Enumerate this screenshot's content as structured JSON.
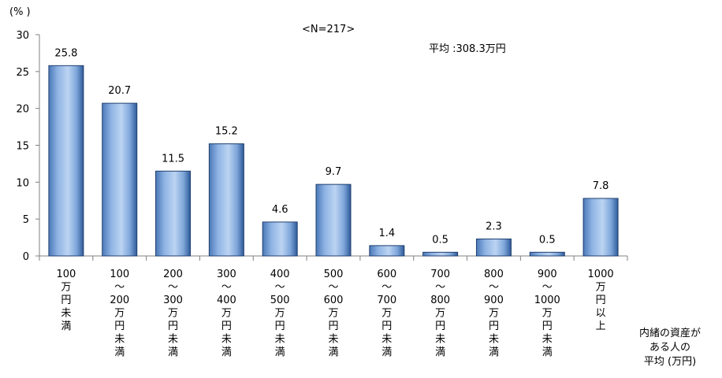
{
  "chart_data": {
    "type": "bar",
    "ylabel": "(% )",
    "subtitle_n": "<N=217>",
    "annotation": "平均 :308.3万円",
    "xlabel": "内緒の資産が\nある人の\n平均 (万円)",
    "ylim": [
      0,
      30
    ],
    "yticks": [
      0,
      5,
      10,
      15,
      20,
      25,
      30
    ],
    "categories": [
      "100\n万\n円\n未\n満",
      "100\n〜\n200\n万\n円\n未\n満",
      "200\n〜\n300\n万\n円\n未\n満",
      "300\n〜\n400\n万\n円\n未\n満",
      "400\n〜\n500\n万\n円\n未\n満",
      "500\n〜\n600\n万\n円\n未\n満",
      "600\n〜\n700\n万\n円\n未\n満",
      "700\n〜\n800\n万\n円\n未\n満",
      "800\n〜\n900\n万\n円\n未\n満",
      "900\n〜\n1000\n万\n円\n未\n満",
      "1000\n万\n円\n以\n上"
    ],
    "values": [
      25.8,
      20.7,
      11.5,
      15.2,
      4.6,
      9.7,
      1.4,
      0.5,
      2.3,
      0.5,
      7.8
    ],
    "value_labels": [
      "25.8",
      "20.7",
      "11.5",
      "15.2",
      "4.6",
      "9.7",
      "1.4",
      "0.5",
      "2.3",
      "0.5",
      "7.8"
    ],
    "bar_color": "#8db4e2",
    "grid": false
  }
}
